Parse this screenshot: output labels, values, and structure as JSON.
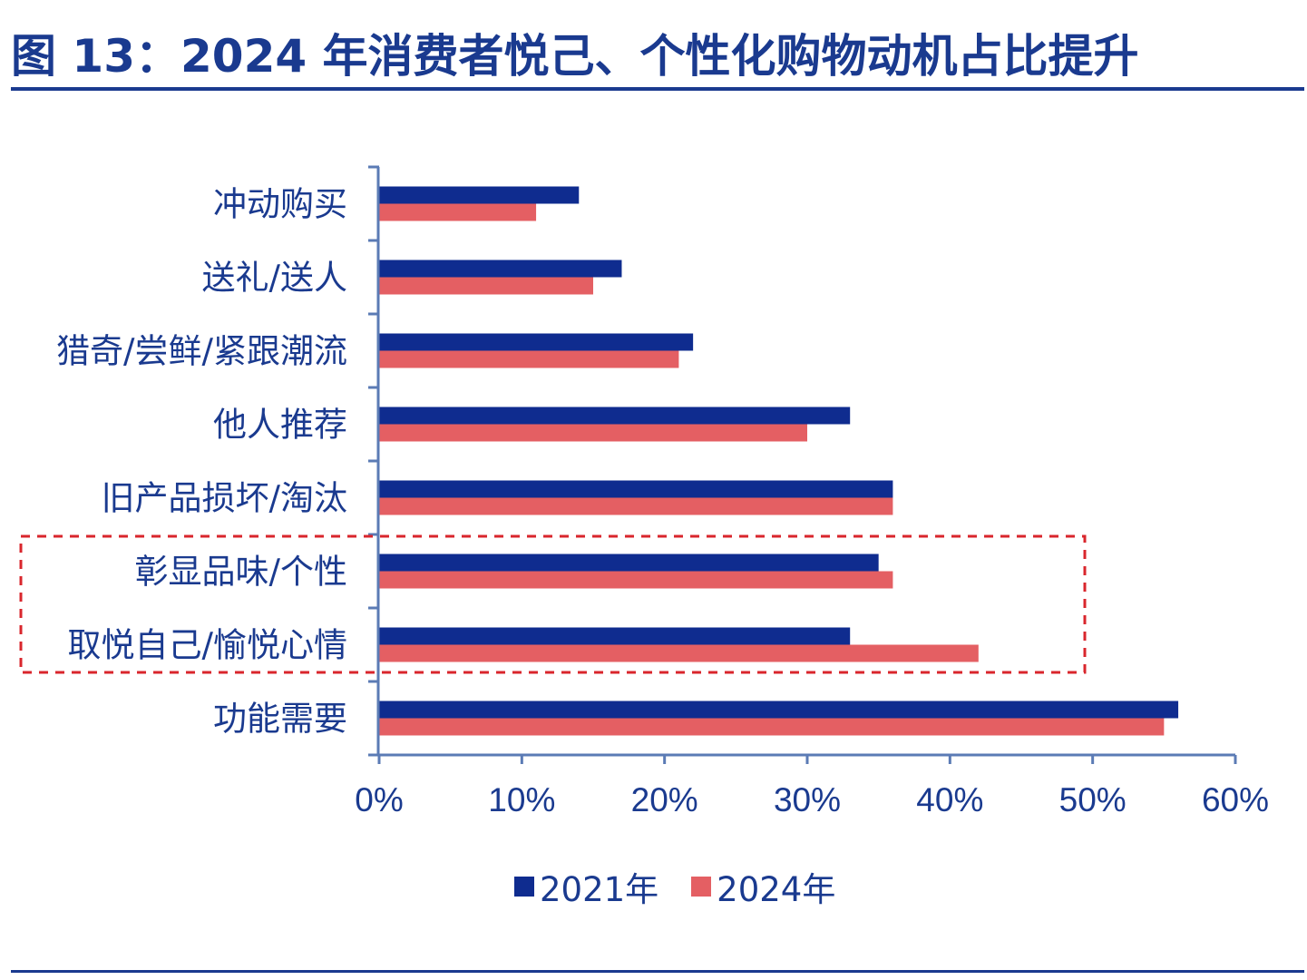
{
  "title": "图 13：2024 年消费者悦己、个性化购物动机占比提升",
  "colors": {
    "brand": "#1a3a8f",
    "series_2021": "#0f2c8f",
    "series_2024": "#e45f63",
    "highlight_box": "#d9262c"
  },
  "chart_data": {
    "type": "bar",
    "orientation": "horizontal",
    "categories": [
      "冲动购买",
      "送礼/送人",
      "猎奇/尝鲜/紧跟潮流",
      "他人推荐",
      "旧产品损坏/淘汰",
      "彰显品味/个性",
      "取悦自己/愉悦心情",
      "功能需要"
    ],
    "series": [
      {
        "name": "2021年",
        "values": [
          14,
          17,
          22,
          33,
          36,
          35,
          33,
          56
        ]
      },
      {
        "name": "2024年",
        "values": [
          11,
          15,
          21,
          30,
          36,
          36,
          42,
          55
        ]
      }
    ],
    "xlim": [
      0,
      60
    ],
    "xticks": [
      0,
      10,
      20,
      30,
      40,
      50,
      60
    ],
    "xtick_labels": [
      "0%",
      "10%",
      "20%",
      "30%",
      "40%",
      "50%",
      "60%"
    ],
    "grid": false,
    "legend_position": "bottom-center",
    "highlighted_categories": [
      "彰显品味/个性",
      "取悦自己/愉悦心情"
    ],
    "xlabel": "",
    "ylabel": ""
  },
  "legend": {
    "item_2021": "2021年",
    "item_2024": "2024年"
  }
}
